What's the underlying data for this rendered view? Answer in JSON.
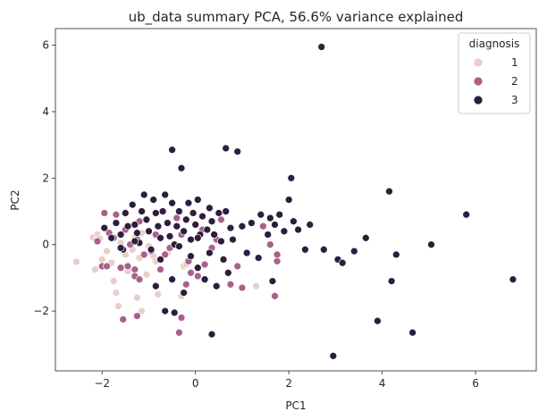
{
  "chart_data": {
    "type": "scatter",
    "title": "ub_data summary PCA, 56.6% variance explained",
    "xlabel": "PC1",
    "ylabel": "PC2",
    "xlim": [
      -3.0,
      7.3
    ],
    "ylim": [
      -3.8,
      6.5
    ],
    "xticks": [
      -2,
      0,
      2,
      4,
      6
    ],
    "yticks": [
      -2,
      0,
      2,
      4,
      6
    ],
    "grid": false,
    "legend": {
      "title": "diagnosis",
      "placement": "top-right"
    },
    "series": [
      {
        "name": "1",
        "color": "#e8cfc8",
        "points": [
          [
            -2.55,
            -0.52
          ],
          [
            -2.2,
            0.22
          ],
          [
            -2.1,
            0.3
          ],
          [
            -2.05,
            0.18
          ],
          [
            -2.15,
            -0.75
          ],
          [
            -2.0,
            -0.45
          ],
          [
            -1.9,
            -0.2
          ],
          [
            -1.8,
            -0.55
          ],
          [
            -1.75,
            -1.1
          ],
          [
            -1.7,
            -1.45
          ],
          [
            -1.65,
            -1.85
          ],
          [
            -1.6,
            0.05
          ],
          [
            -1.5,
            -0.3
          ],
          [
            -1.45,
            -0.8
          ],
          [
            -1.35,
            -0.15
          ],
          [
            -1.3,
            0.2
          ],
          [
            -1.25,
            -1.6
          ],
          [
            -1.2,
            -0.4
          ],
          [
            -1.15,
            0.35
          ],
          [
            -1.05,
            -0.9
          ],
          [
            -1.0,
            -0.05
          ],
          [
            -0.9,
            -0.35
          ],
          [
            -1.15,
            -2.0
          ],
          [
            -0.85,
            -0.5
          ],
          [
            -0.6,
            -0.25
          ],
          [
            -0.3,
            -1.55
          ],
          [
            -0.25,
            -0.65
          ],
          [
            -0.2,
            -0.6
          ],
          [
            -0.8,
            -1.5
          ],
          [
            1.3,
            -1.25
          ]
        ]
      },
      {
        "name": "2",
        "color": "#a8618c",
        "points": [
          [
            -2.1,
            0.1
          ],
          [
            -2.0,
            -0.65
          ],
          [
            -1.95,
            0.95
          ],
          [
            -1.9,
            -0.65
          ],
          [
            -1.85,
            0.35
          ],
          [
            -1.75,
            0.2
          ],
          [
            -1.7,
            0.9
          ],
          [
            -1.6,
            -0.7
          ],
          [
            -1.55,
            -2.25
          ],
          [
            -1.5,
            0.45
          ],
          [
            -1.45,
            -0.65
          ],
          [
            -1.4,
            0.0
          ],
          [
            -1.3,
            -0.75
          ],
          [
            -1.3,
            -0.95
          ],
          [
            -1.25,
            0.15
          ],
          [
            -1.2,
            0.7
          ],
          [
            -1.1,
            -0.3
          ],
          [
            -1.2,
            -1.05
          ],
          [
            -1.25,
            -2.15
          ],
          [
            -0.95,
            -0.2
          ],
          [
            -0.85,
            0.3
          ],
          [
            -0.75,
            -0.75
          ],
          [
            -0.65,
            -0.3
          ],
          [
            -0.55,
            -0.1
          ],
          [
            -0.4,
            0.8
          ],
          [
            -0.35,
            -2.65
          ],
          [
            -0.3,
            -2.2
          ],
          [
            -0.3,
            0.3
          ],
          [
            -0.2,
            -1.2
          ],
          [
            -0.15,
            -0.5
          ],
          [
            -0.1,
            -0.85
          ],
          [
            0.05,
            -0.95
          ],
          [
            0.15,
            0.45
          ],
          [
            0.2,
            -0.6
          ],
          [
            0.35,
            -0.1
          ],
          [
            0.45,
            0.15
          ],
          [
            0.55,
            0.75
          ],
          [
            0.75,
            -1.2
          ],
          [
            0.9,
            -0.65
          ],
          [
            1.0,
            -1.3
          ],
          [
            1.45,
            0.55
          ],
          [
            1.6,
            0.0
          ],
          [
            1.75,
            -0.5
          ],
          [
            1.75,
            -0.3
          ],
          [
            1.7,
            -1.55
          ]
        ]
      },
      {
        "name": "3",
        "color": "#2d1e3e",
        "points": [
          [
            -1.95,
            0.5
          ],
          [
            -1.8,
            0.2
          ],
          [
            -1.7,
            0.65
          ],
          [
            -1.6,
            0.3
          ],
          [
            -1.55,
            -0.15
          ],
          [
            -1.5,
            0.95
          ],
          [
            -1.45,
            0.55
          ],
          [
            -1.35,
            1.2
          ],
          [
            -1.3,
            0.6
          ],
          [
            -1.25,
            0.35
          ],
          [
            -1.2,
            0.05
          ],
          [
            -1.15,
            1.0
          ],
          [
            -1.1,
            1.5
          ],
          [
            -1.05,
            0.75
          ],
          [
            -1.0,
            0.4
          ],
          [
            -0.95,
            -0.15
          ],
          [
            -0.9,
            1.35
          ],
          [
            -0.85,
            0.95
          ],
          [
            -0.85,
            -1.25
          ],
          [
            -0.8,
            0.55
          ],
          [
            -0.75,
            0.2
          ],
          [
            -0.75,
            -0.45
          ],
          [
            -0.7,
            1.0
          ],
          [
            -0.65,
            1.5
          ],
          [
            -0.65,
            -2.0
          ],
          [
            -0.6,
            0.65
          ],
          [
            -0.55,
            0.25
          ],
          [
            -0.5,
            -1.05
          ],
          [
            -0.5,
            1.25
          ],
          [
            -0.45,
            0.0
          ],
          [
            -0.45,
            -2.05
          ],
          [
            -0.4,
            0.55
          ],
          [
            -0.35,
            1.0
          ],
          [
            -0.3,
            2.3
          ],
          [
            -0.25,
            -1.45
          ],
          [
            -0.25,
            0.4
          ],
          [
            -0.2,
            0.75
          ],
          [
            -0.15,
            1.25
          ],
          [
            -0.1,
            0.15
          ],
          [
            -0.1,
            -0.35
          ],
          [
            -0.05,
            0.95
          ],
          [
            0.0,
            0.6
          ],
          [
            0.05,
            1.35
          ],
          [
            0.05,
            -0.7
          ],
          [
            0.1,
            0.3
          ],
          [
            0.15,
            0.85
          ],
          [
            0.2,
            -1.05
          ],
          [
            0.25,
            0.45
          ],
          [
            0.3,
            1.1
          ],
          [
            0.3,
            -0.25
          ],
          [
            0.35,
            0.7
          ],
          [
            0.35,
            -2.7
          ],
          [
            0.4,
            0.3
          ],
          [
            0.45,
            -1.25
          ],
          [
            0.5,
            0.95
          ],
          [
            0.55,
            0.1
          ],
          [
            0.6,
            -0.45
          ],
          [
            0.65,
            1.0
          ],
          [
            0.65,
            2.9
          ],
          [
            0.7,
            -0.85
          ],
          [
            0.75,
            0.5
          ],
          [
            0.8,
            0.15
          ],
          [
            0.9,
            2.8
          ],
          [
            1.0,
            0.55
          ],
          [
            1.1,
            -0.25
          ],
          [
            1.2,
            0.65
          ],
          [
            1.35,
            -0.4
          ],
          [
            1.4,
            0.9
          ],
          [
            1.55,
            0.3
          ],
          [
            1.6,
            0.8
          ],
          [
            1.65,
            -1.1
          ],
          [
            1.7,
            0.6
          ],
          [
            1.8,
            0.9
          ],
          [
            1.9,
            0.4
          ],
          [
            2.0,
            1.35
          ],
          [
            2.05,
            2.0
          ],
          [
            2.1,
            0.7
          ],
          [
            2.2,
            0.45
          ],
          [
            2.35,
            -0.15
          ],
          [
            2.45,
            0.6
          ],
          [
            2.7,
            5.95
          ],
          [
            2.75,
            -0.15
          ],
          [
            2.95,
            -3.35
          ],
          [
            3.05,
            -0.45
          ],
          [
            3.15,
            -0.55
          ],
          [
            3.4,
            -0.2
          ],
          [
            3.65,
            0.2
          ],
          [
            3.9,
            -2.3
          ],
          [
            4.15,
            1.6
          ],
          [
            4.2,
            -1.1
          ],
          [
            4.3,
            -0.3
          ],
          [
            4.65,
            -2.65
          ],
          [
            5.05,
            0.0
          ],
          [
            5.8,
            0.9
          ],
          [
            6.8,
            -1.05
          ],
          [
            -0.5,
            2.85
          ],
          [
            -1.3,
            0.1
          ],
          [
            -1.6,
            -0.1
          ],
          [
            -0.35,
            -0.05
          ],
          [
            0.05,
            0.2
          ]
        ]
      }
    ]
  }
}
